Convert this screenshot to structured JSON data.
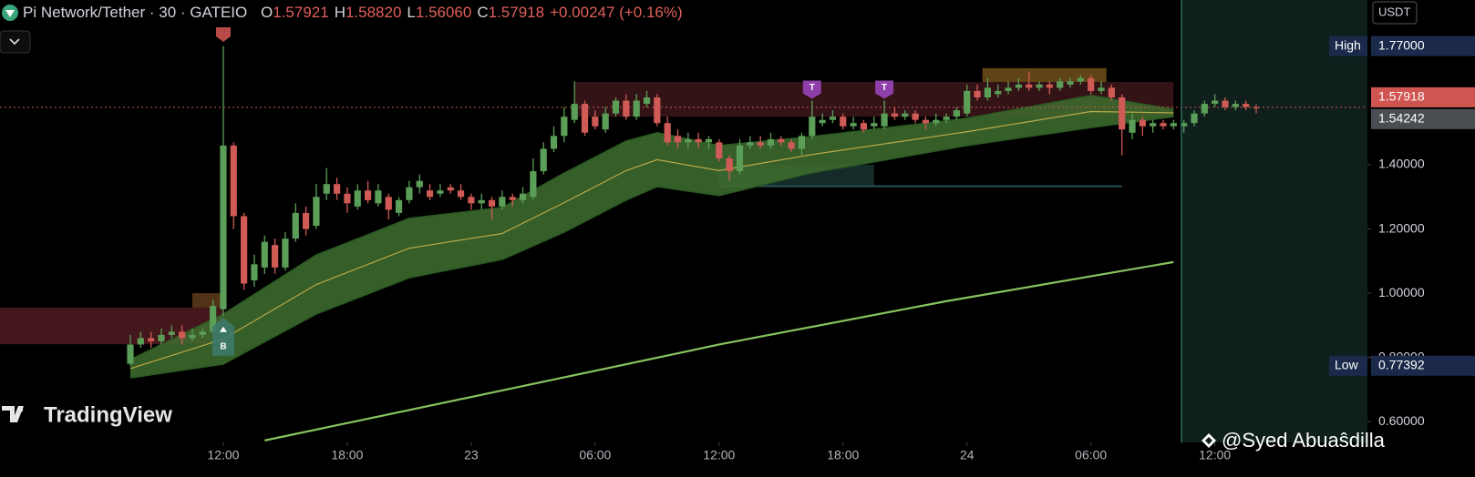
{
  "header": {
    "symbol": "Pi Network/Tether · 30 · GATEIO",
    "ohlc": [
      {
        "key": "O",
        "value": "1.57921"
      },
      {
        "key": "H",
        "value": "1.58820"
      },
      {
        "key": "L",
        "value": "1.56060"
      },
      {
        "key": "C",
        "value": "1.57918"
      }
    ],
    "change": "+0.00247 (+0.16%)"
  },
  "watermark": "TradingView",
  "credit": "@Syed Abuaŝdilla",
  "chart_data": {
    "type": "candlestick",
    "up_color": "#5b9e58",
    "down_color": "#d05a55",
    "grid": false,
    "currency": "USDT",
    "xlim": [
      -12.62,
      119.77
    ],
    "xticks": [
      {
        "value": 9,
        "label": "12:00"
      },
      {
        "value": 21,
        "label": "18:00"
      },
      {
        "value": 33,
        "label": "23"
      },
      {
        "value": 45,
        "label": "06:00"
      },
      {
        "value": 57,
        "label": "12:00"
      },
      {
        "value": 69,
        "label": "18:00"
      },
      {
        "value": 81,
        "label": "24"
      },
      {
        "value": 93,
        "label": "06:00"
      },
      {
        "value": 105,
        "label": "12:00"
      }
    ],
    "ylim": [
      0.535,
      1.9135
    ],
    "yticks": [
      {
        "value": 0.6,
        "label": "0.60000"
      },
      {
        "value": 0.8,
        "label": "0.80000"
      },
      {
        "value": 1.0,
        "label": "1.00000"
      },
      {
        "value": 1.2,
        "label": "1.20000"
      },
      {
        "value": 1.4,
        "label": "1.40000"
      }
    ],
    "open": [
      0.78,
      0.84,
      0.86,
      0.85,
      0.87,
      0.88,
      0.86,
      0.87,
      0.88,
      0.95,
      1.46,
      1.24,
      1.04,
      1.08,
      1.15,
      1.08,
      1.17,
      1.25,
      1.21,
      1.31,
      1.34,
      1.31,
      1.27,
      1.32,
      1.28,
      1.3,
      1.25,
      1.29,
      1.33,
      1.32,
      1.31,
      1.33,
      1.32,
      1.3,
      1.28,
      1.29,
      1.27,
      1.3,
      1.29,
      1.3,
      1.38,
      1.45,
      1.49,
      1.54,
      1.59,
      1.55,
      1.51,
      1.56,
      1.6,
      1.55,
      1.59,
      1.61,
      1.53,
      1.49,
      1.47,
      1.48,
      1.47,
      1.47,
      1.42,
      1.38,
      1.46,
      1.47,
      1.46,
      1.48,
      1.47,
      1.45,
      1.49,
      1.53,
      1.54,
      1.55,
      1.52,
      1.53,
      1.52,
      1.52,
      1.56,
      1.55,
      1.56,
      1.54,
      1.53,
      1.54,
      1.55,
      1.56,
      1.63,
      1.61,
      1.62,
      1.63,
      1.64,
      1.65,
      1.64,
      1.65,
      1.64,
      1.65,
      1.66,
      1.67,
      1.63,
      1.64,
      1.61,
      1.5,
      1.54,
      1.52,
      1.53,
      1.52,
      1.52,
      1.53,
      1.56,
      1.59,
      1.6,
      1.58,
      1.59,
      1.57921
    ],
    "high": [
      0.87,
      0.88,
      0.88,
      0.89,
      0.9,
      0.9,
      0.89,
      0.89,
      0.98,
      1.77,
      1.47,
      1.25,
      1.12,
      1.18,
      1.17,
      1.19,
      1.28,
      1.27,
      1.34,
      1.39,
      1.36,
      1.33,
      1.34,
      1.35,
      1.34,
      1.31,
      1.3,
      1.35,
      1.37,
      1.34,
      1.34,
      1.34,
      1.34,
      1.31,
      1.31,
      1.3,
      1.32,
      1.31,
      1.33,
      1.42,
      1.47,
      1.52,
      1.58,
      1.66,
      1.6,
      1.57,
      1.58,
      1.61,
      1.62,
      1.62,
      1.63,
      1.62,
      1.55,
      1.51,
      1.5,
      1.5,
      1.49,
      1.48,
      1.43,
      1.48,
      1.49,
      1.49,
      1.5,
      1.49,
      1.48,
      1.5,
      1.6,
      1.56,
      1.57,
      1.56,
      1.55,
      1.54,
      1.55,
      1.6,
      1.58,
      1.57,
      1.57,
      1.55,
      1.56,
      1.56,
      1.58,
      1.65,
      1.65,
      1.67,
      1.65,
      1.66,
      1.67,
      1.69,
      1.66,
      1.66,
      1.67,
      1.67,
      1.68,
      1.68,
      1.66,
      1.65,
      1.62,
      1.56,
      1.55,
      1.54,
      1.54,
      1.54,
      1.54,
      1.57,
      1.6,
      1.62,
      1.61,
      1.6,
      1.6,
      1.5882
    ],
    "low": [
      0.77392,
      0.83,
      0.83,
      0.84,
      0.86,
      0.84,
      0.85,
      0.86,
      0.87,
      0.93,
      1.2,
      1.01,
      1.02,
      1.06,
      1.06,
      1.07,
      1.16,
      1.18,
      1.2,
      1.29,
      1.29,
      1.25,
      1.26,
      1.28,
      1.27,
      1.23,
      1.24,
      1.28,
      1.31,
      1.29,
      1.3,
      1.31,
      1.29,
      1.26,
      1.26,
      1.23,
      1.26,
      1.27,
      1.28,
      1.29,
      1.37,
      1.44,
      1.47,
      1.53,
      1.49,
      1.51,
      1.5,
      1.55,
      1.54,
      1.54,
      1.58,
      1.52,
      1.46,
      1.45,
      1.45,
      1.45,
      1.45,
      1.41,
      1.35,
      1.37,
      1.45,
      1.45,
      1.45,
      1.46,
      1.44,
      1.43,
      1.48,
      1.52,
      1.53,
      1.51,
      1.51,
      1.5,
      1.51,
      1.51,
      1.54,
      1.54,
      1.53,
      1.51,
      1.52,
      1.53,
      1.54,
      1.55,
      1.6,
      1.6,
      1.61,
      1.62,
      1.63,
      1.63,
      1.63,
      1.62,
      1.63,
      1.64,
      1.65,
      1.62,
      1.62,
      1.6,
      1.43,
      1.48,
      1.49,
      1.5,
      1.51,
      1.51,
      1.5,
      1.52,
      1.55,
      1.58,
      1.57,
      1.57,
      1.57,
      1.5606
    ],
    "close": [
      0.84,
      0.86,
      0.85,
      0.87,
      0.88,
      0.86,
      0.87,
      0.88,
      0.96,
      1.46,
      1.24,
      1.03,
      1.09,
      1.16,
      1.08,
      1.17,
      1.25,
      1.2,
      1.3,
      1.34,
      1.31,
      1.28,
      1.32,
      1.29,
      1.32,
      1.26,
      1.29,
      1.33,
      1.35,
      1.3,
      1.32,
      1.32,
      1.3,
      1.28,
      1.29,
      1.27,
      1.3,
      1.29,
      1.31,
      1.38,
      1.45,
      1.49,
      1.55,
      1.59,
      1.5,
      1.52,
      1.56,
      1.6,
      1.55,
      1.6,
      1.61,
      1.53,
      1.47,
      1.47,
      1.48,
      1.47,
      1.48,
      1.42,
      1.38,
      1.46,
      1.47,
      1.46,
      1.48,
      1.47,
      1.45,
      1.49,
      1.55,
      1.54,
      1.55,
      1.52,
      1.53,
      1.51,
      1.53,
      1.56,
      1.55,
      1.56,
      1.54,
      1.53,
      1.54,
      1.55,
      1.57,
      1.63,
      1.61,
      1.64,
      1.63,
      1.64,
      1.65,
      1.64,
      1.65,
      1.64,
      1.66,
      1.66,
      1.67,
      1.63,
      1.64,
      1.61,
      1.51,
      1.54,
      1.52,
      1.53,
      1.52,
      1.53,
      1.53,
      1.56,
      1.59,
      1.6,
      1.58,
      1.59,
      1.58,
      1.57918
    ],
    "ribbon": {
      "x": [
        0,
        9,
        18,
        27,
        36,
        42,
        48,
        51,
        57,
        66,
        81,
        93,
        101
      ],
      "upper": [
        0.793,
        0.935,
        1.119,
        1.233,
        1.267,
        1.374,
        1.474,
        1.5,
        1.46,
        1.488,
        1.545,
        1.616,
        1.573
      ],
      "middle": [
        0.765,
        0.857,
        1.027,
        1.14,
        1.186,
        1.282,
        1.382,
        1.416,
        1.382,
        1.432,
        1.503,
        1.566,
        1.562
      ],
      "lower": [
        0.736,
        0.779,
        0.935,
        1.048,
        1.105,
        1.19,
        1.29,
        1.332,
        1.304,
        1.375,
        1.46,
        1.516,
        1.55
      ]
    },
    "ma_line": {
      "x": [
        13,
        35,
        57,
        79,
        101
      ],
      "values": [
        0.541,
        0.69,
        0.84,
        0.975,
        1.097
      ],
      "color": "#86c35e"
    },
    "zones": [
      {
        "from": -12.62,
        "to": 9,
        "top": 0.955,
        "bottom": 0.841,
        "color": "#4a1a1e"
      },
      {
        "from": 6,
        "to": 9,
        "top": 1.0,
        "bottom": 0.955,
        "color": "#5a3a1a"
      },
      {
        "from": 43,
        "to": 101,
        "top": 1.658,
        "bottom": 1.55,
        "color": "#3a1519"
      },
      {
        "from": 82.5,
        "to": 94.5,
        "top": 1.701,
        "bottom": 1.658,
        "color": "#6a4a1a"
      },
      {
        "from": 57,
        "to": 72,
        "top": 1.4,
        "bottom": 1.334,
        "color": "#16302e"
      },
      {
        "from": 57,
        "to": 96,
        "top": 1.336,
        "bottom": 1.332,
        "color": "#2f5c5a"
      }
    ],
    "signals": [
      {
        "index": 9,
        "text": "B",
        "color": "#3d7a6a",
        "side": "below"
      },
      {
        "index": 66,
        "text": "T",
        "color": "#8e3fa8",
        "side": "above"
      },
      {
        "index": 73,
        "text": "T",
        "color": "#8e3fa8",
        "side": "above"
      }
    ],
    "price_labels": [
      {
        "text": "High",
        "value": 1.77,
        "value_label": "1.77000",
        "color": "#1b2a4a"
      },
      {
        "value": 1.57918,
        "value_label": "1.57918",
        "color": "#cf5550"
      },
      {
        "value": 1.54242,
        "value_label": "1.54242",
        "color": "#4a4d52"
      },
      {
        "text": "Low",
        "value": 0.77392,
        "value_label": "0.77392",
        "color": "#1b2a4a"
      }
    ]
  }
}
